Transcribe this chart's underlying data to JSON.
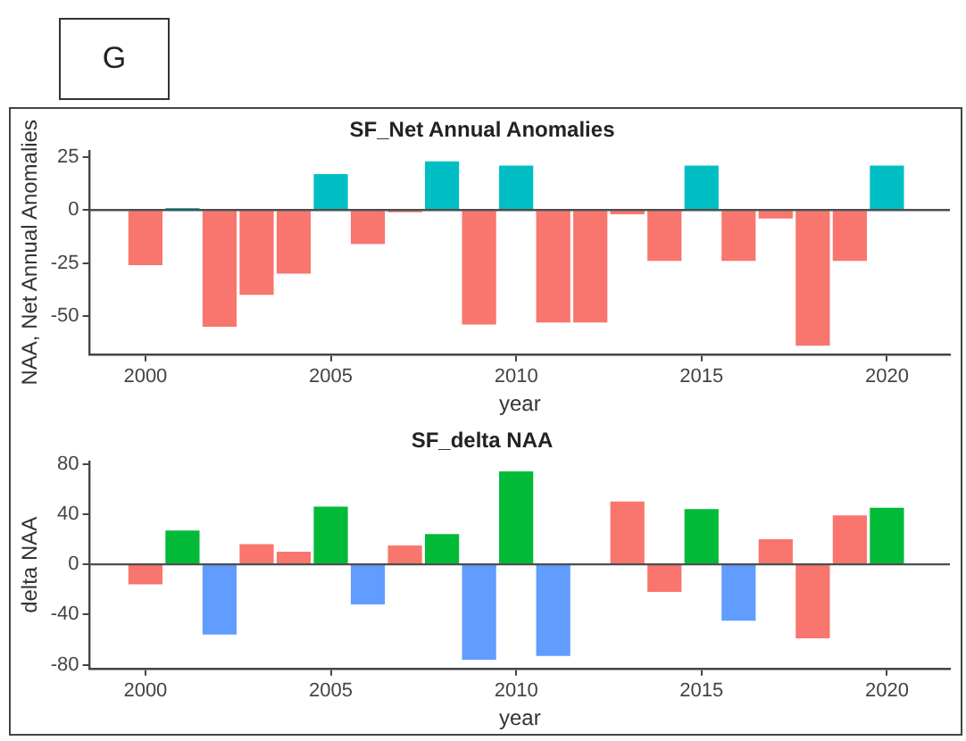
{
  "chart_data": [
    {
      "type": "bar",
      "title": "SF_Net Annual Anomalies",
      "xlabel": "year",
      "ylabel": "NAA, Net Annual Anomalies",
      "annotations": [
        "G"
      ],
      "x": [
        2000,
        2001,
        2002,
        2003,
        2004,
        2005,
        2006,
        2007,
        2008,
        2009,
        2010,
        2011,
        2012,
        2013,
        2014,
        2015,
        2016,
        2017,
        2018,
        2019,
        2020
      ],
      "values": [
        -26,
        1,
        -55,
        -40,
        -30,
        17,
        -16,
        -1,
        23,
        -54,
        21,
        -53,
        -53,
        -2,
        -24,
        21,
        -24,
        -4,
        -64,
        -24,
        21
      ],
      "colors": [
        "#f8766d",
        "#00bfc4",
        "#f8766d",
        "#f8766d",
        "#f8766d",
        "#00bfc4",
        "#f8766d",
        "#f8766d",
        "#00bfc4",
        "#f8766d",
        "#00bfc4",
        "#f8766d",
        "#f8766d",
        "#f8766d",
        "#f8766d",
        "#00bfc4",
        "#f8766d",
        "#f8766d",
        "#f8766d",
        "#f8766d",
        "#00bfc4"
      ],
      "xlim": [
        1998.5,
        2021.7
      ],
      "xticks": [
        2000,
        2005,
        2010,
        2015,
        2020
      ],
      "ylim": [
        -68,
        28
      ],
      "yticks": [
        -50,
        -25,
        0,
        25
      ],
      "ref_lines": [
        {
          "axis": "y",
          "value": 0,
          "color": "#4d4d4d"
        }
      ]
    },
    {
      "type": "bar",
      "title": "SF_delta NAA",
      "xlabel": "year",
      "ylabel": "delta NAA",
      "x": [
        2000,
        2001,
        2002,
        2003,
        2004,
        2005,
        2006,
        2007,
        2008,
        2009,
        2010,
        2011,
        2012,
        2013,
        2014,
        2015,
        2016,
        2017,
        2018,
        2019,
        2020
      ],
      "values": [
        -16,
        27,
        -56,
        16,
        10,
        46,
        -32,
        15,
        24,
        -76,
        74,
        -73,
        0,
        50,
        -22,
        44,
        -45,
        20,
        -59,
        39,
        45
      ],
      "colors": [
        "#f8766d",
        "#00ba38",
        "#619cff",
        "#f8766d",
        "#f8766d",
        "#00ba38",
        "#619cff",
        "#f8766d",
        "#00ba38",
        "#619cff",
        "#00ba38",
        "#619cff",
        "#f8766d",
        "#f8766d",
        "#f8766d",
        "#00ba38",
        "#619cff",
        "#f8766d",
        "#f8766d",
        "#f8766d",
        "#00ba38"
      ],
      "xlim": [
        1998.5,
        2021.7
      ],
      "xticks": [
        2000,
        2005,
        2010,
        2015,
        2020
      ],
      "ylim": [
        -83,
        82
      ],
      "yticks": [
        -80,
        -40,
        0,
        40,
        80
      ],
      "ref_lines": [
        {
          "axis": "y",
          "value": 0,
          "color": "#4d4d4d"
        }
      ]
    }
  ]
}
